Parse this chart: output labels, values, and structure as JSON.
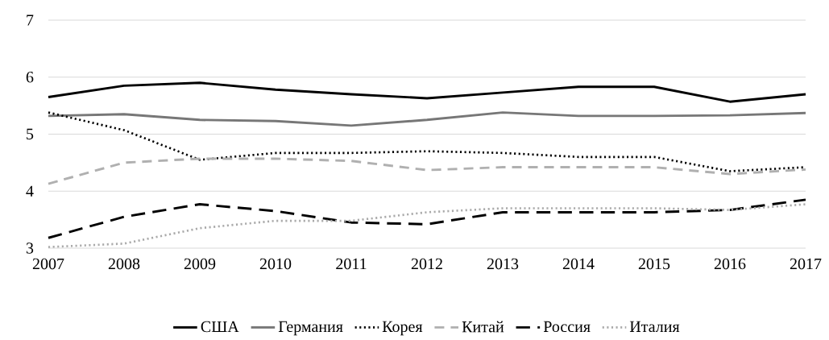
{
  "chart_data": {
    "type": "line",
    "categories": [
      "2007",
      "2008",
      "2009",
      "2010",
      "2011",
      "2012",
      "2013",
      "2014",
      "2015",
      "2016",
      "2017"
    ],
    "series": [
      {
        "name": "США",
        "color": "#000000",
        "line_style": "solid",
        "values": [
          5.65,
          5.85,
          5.9,
          5.78,
          5.7,
          5.63,
          5.73,
          5.83,
          5.83,
          5.57,
          5.7
        ]
      },
      {
        "name": "Германия",
        "color": "#777777",
        "line_style": "solid",
        "values": [
          5.32,
          5.35,
          5.25,
          5.23,
          5.15,
          5.25,
          5.38,
          5.32,
          5.32,
          5.33,
          5.37
        ]
      },
      {
        "name": "Корея",
        "color": "#000000",
        "line_style": "dotted",
        "values": [
          5.38,
          5.07,
          4.55,
          4.67,
          4.67,
          4.7,
          4.67,
          4.6,
          4.6,
          4.35,
          4.42
        ]
      },
      {
        "name": "Китай",
        "color": "#b0b0b0",
        "line_style": "dashed",
        "values": [
          4.13,
          4.5,
          4.57,
          4.57,
          4.53,
          4.37,
          4.42,
          4.42,
          4.42,
          4.3,
          4.38
        ]
      },
      {
        "name": "Россия",
        "color": "#000000",
        "line_style": "longdashed",
        "values": [
          3.18,
          3.55,
          3.77,
          3.65,
          3.45,
          3.42,
          3.63,
          3.63,
          3.63,
          3.67,
          3.85
        ]
      },
      {
        "name": "Италия",
        "color": "#aaaaaa",
        "line_style": "dotted",
        "values": [
          3.02,
          3.08,
          3.35,
          3.48,
          3.48,
          3.63,
          3.7,
          3.7,
          3.7,
          3.67,
          3.77
        ]
      }
    ],
    "ylim": [
      3,
      7
    ],
    "yticks": [
      3,
      4,
      5,
      6,
      7
    ],
    "grid": "y",
    "legend": "bottom"
  }
}
